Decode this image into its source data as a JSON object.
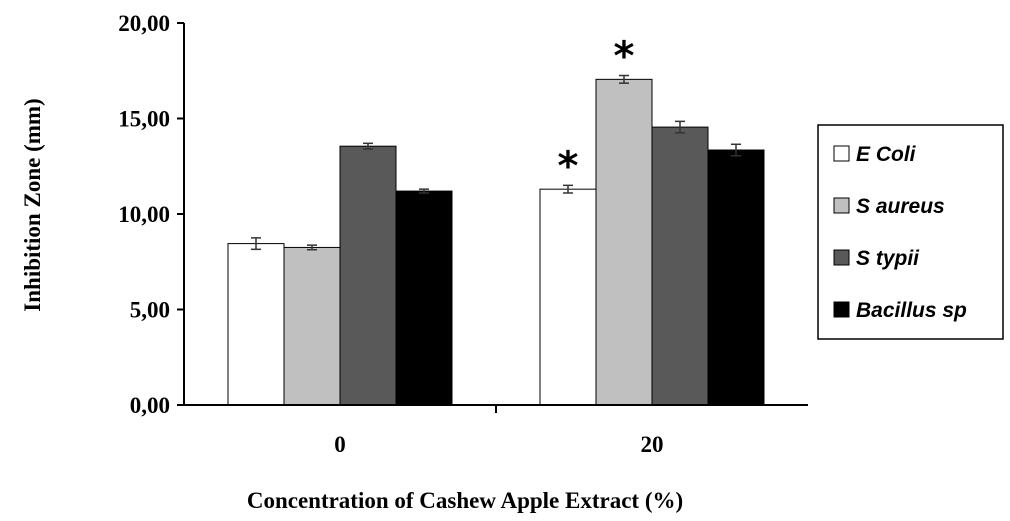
{
  "chart_data": {
    "type": "bar",
    "xlabel": "Concentration of Cashew Apple Extract (%)",
    "ylabel": "Inhibition Zone (mm)",
    "ylim": [
      0,
      20
    ],
    "yticks": [
      "0,00",
      "5,00",
      "10,00",
      "15,00",
      "20,00"
    ],
    "categories": [
      "0",
      "20"
    ],
    "series": [
      {
        "name": "E Coli",
        "color": "#ffffff",
        "values": [
          8.45,
          11.3
        ],
        "errors": [
          0.3,
          0.2
        ],
        "significant": [
          false,
          true
        ]
      },
      {
        "name": "S aureus",
        "color": "#c0c0c0",
        "values": [
          8.25,
          17.05
        ],
        "errors": [
          0.12,
          0.2
        ],
        "significant": [
          false,
          true
        ]
      },
      {
        "name": "S typii",
        "color": "#595959",
        "values": [
          13.55,
          14.55
        ],
        "errors": [
          0.15,
          0.3
        ],
        "significant": [
          false,
          false
        ]
      },
      {
        "name": "Bacillus sp",
        "color": "#000000",
        "values": [
          11.2,
          13.35
        ],
        "errors": [
          0.1,
          0.3
        ],
        "significant": [
          false,
          false
        ]
      }
    ],
    "significance_marker": "*",
    "legend_position": "right",
    "grid": false
  }
}
